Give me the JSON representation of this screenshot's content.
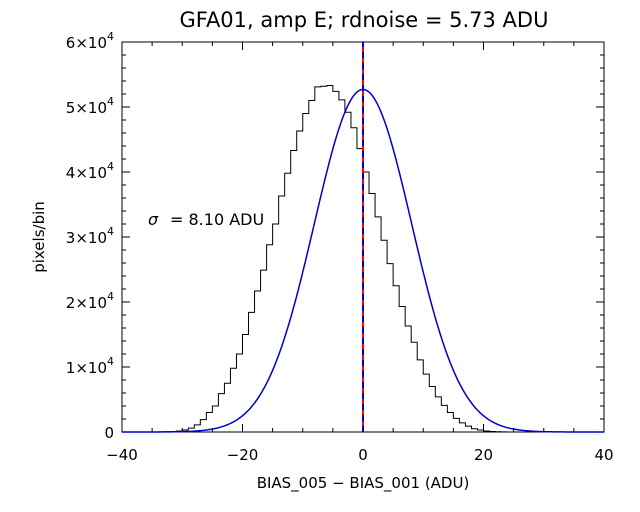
{
  "chart_data": {
    "type": "histogram",
    "title": "GFA01, amp E; rdnoise = 5.73 ADU",
    "xlabel": "BIAS_005 − BIAS_001 (ADU)",
    "ylabel": "pixels/bin",
    "xlim": [
      -40,
      40
    ],
    "ylim": [
      0,
      60000
    ],
    "xticks": [
      -40,
      -20,
      0,
      20,
      40
    ],
    "xtick_labels": [
      "−40",
      "−20",
      "0",
      "20",
      "40"
    ],
    "yticks": [
      0,
      10000,
      20000,
      30000,
      40000,
      50000,
      60000
    ],
    "ytick_labels": [
      {
        "mant": "0",
        "exp": ""
      },
      {
        "mant": "1×10",
        "exp": "4"
      },
      {
        "mant": "2×10",
        "exp": "4"
      },
      {
        "mant": "3×10",
        "exp": "4"
      },
      {
        "mant": "4×10",
        "exp": "4"
      },
      {
        "mant": "5×10",
        "exp": "4"
      },
      {
        "mant": "6×10",
        "exp": "4"
      }
    ],
    "annotation": {
      "symbol": "σ",
      "text": "= 8.10 ADU"
    },
    "histogram": {
      "bin_width": 1,
      "bin_start": -34,
      "values": [
        10,
        30,
        70,
        150,
        300,
        600,
        1100,
        1900,
        3000,
        4000,
        5900,
        7500,
        9800,
        12000,
        15000,
        18400,
        21700,
        24900,
        28800,
        32000,
        36300,
        39800,
        43300,
        46300,
        49000,
        51000,
        53100,
        53200,
        53300,
        52400,
        51100,
        49200,
        46800,
        43600,
        40000,
        36700,
        33100,
        29500,
        25900,
        22500,
        19300,
        16300,
        13800,
        11100,
        8900,
        7000,
        5400,
        4100,
        3000,
        2100,
        1400,
        900,
        500,
        300,
        150,
        70,
        30,
        10,
        3,
        0,
        0,
        0,
        0,
        0,
        0,
        0,
        0,
        0
      ]
    },
    "fit": {
      "type": "gaussian",
      "amplitude": 52700,
      "mean": 0,
      "sigma": 8.1,
      "color": "#0000cc"
    },
    "center_lines": [
      {
        "x": 0,
        "color": "#ff0000",
        "style": "solid"
      },
      {
        "x": 0,
        "color": "#0000cc",
        "style": "dashed"
      }
    ],
    "colors": {
      "axes": "#000000",
      "histogram": "#000000"
    }
  }
}
